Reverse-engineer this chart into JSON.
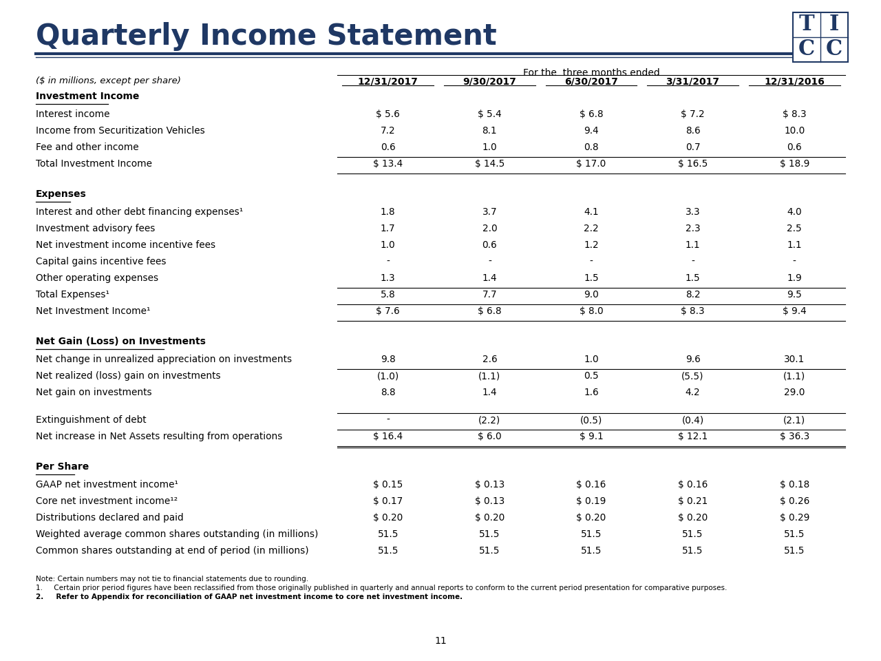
{
  "title": "Quarterly Income Statement",
  "subtitle": "For the  three months ended",
  "col_label": "($ in millions, except per share)",
  "columns": [
    "12/31/2017",
    "9/30/2017",
    "6/30/2017",
    "3/31/2017",
    "12/31/2016"
  ],
  "sections": [
    {
      "header": "Investment Income",
      "header_underline": true,
      "rows": [
        {
          "label": "Interest income",
          "values": [
            "$ 5.6",
            "$ 5.4",
            "$ 6.8",
            "$ 7.2",
            "$ 8.3"
          ],
          "top_border": false,
          "bottom_border": false
        },
        {
          "label": "Income from Securitization Vehicles",
          "values": [
            "7.2",
            "8.1",
            "9.4",
            "8.6",
            "10.0"
          ],
          "top_border": false,
          "bottom_border": false
        },
        {
          "label": "Fee and other income",
          "values": [
            "0.6",
            "1.0",
            "0.8",
            "0.7",
            "0.6"
          ],
          "top_border": false,
          "bottom_border": false
        },
        {
          "label": "Total Investment Income",
          "values": [
            "$ 13.4",
            "$ 14.5",
            "$ 17.0",
            "$ 16.5",
            "$ 18.9"
          ],
          "top_border": true,
          "bottom_border": true
        }
      ]
    },
    {
      "header": "Expenses",
      "header_underline": true,
      "rows": [
        {
          "label": "Interest and other debt financing expenses¹",
          "values": [
            "1.8",
            "3.7",
            "4.1",
            "3.3",
            "4.0"
          ],
          "top_border": false,
          "bottom_border": false
        },
        {
          "label": "Investment advisory fees",
          "values": [
            "1.7",
            "2.0",
            "2.2",
            "2.3",
            "2.5"
          ],
          "top_border": false,
          "bottom_border": false
        },
        {
          "label": "Net investment income incentive fees",
          "values": [
            "1.0",
            "0.6",
            "1.2",
            "1.1",
            "1.1"
          ],
          "top_border": false,
          "bottom_border": false
        },
        {
          "label": "Capital gains incentive fees",
          "values": [
            "-",
            "-",
            "-",
            "-",
            "-"
          ],
          "top_border": false,
          "bottom_border": false
        },
        {
          "label": "Other operating expenses",
          "values": [
            "1.3",
            "1.4",
            "1.5",
            "1.5",
            "1.9"
          ],
          "top_border": false,
          "bottom_border": false
        },
        {
          "label": "Total Expenses¹",
          "values": [
            "5.8",
            "7.7",
            "9.0",
            "8.2",
            "9.5"
          ],
          "top_border": true,
          "bottom_border": false
        },
        {
          "label": "Net Investment Income¹",
          "values": [
            "$ 7.6",
            "$ 6.8",
            "$ 8.0",
            "$ 8.3",
            "$ 9.4"
          ],
          "top_border": true,
          "bottom_border": true
        }
      ]
    },
    {
      "header": "Net Gain (Loss) on Investments",
      "header_underline": true,
      "rows": [
        {
          "label": "Net change in unrealized appreciation on investments",
          "values": [
            "9.8",
            "2.6",
            "1.0",
            "9.6",
            "30.1"
          ],
          "top_border": false,
          "bottom_border": false
        },
        {
          "label": "Net realized (loss) gain on investments",
          "values": [
            "(1.0)",
            "(1.1)",
            "0.5",
            "(5.5)",
            "(1.1)"
          ],
          "top_border": true,
          "bottom_border": false
        },
        {
          "label": "Net gain on investments",
          "values": [
            "8.8",
            "1.4",
            "1.6",
            "4.2",
            "29.0"
          ],
          "top_border": false,
          "bottom_border": false
        }
      ]
    },
    {
      "header": null,
      "rows": [
        {
          "label": "Extinguishment of debt",
          "values": [
            "-",
            "(2.2)",
            "(0.5)",
            "(0.4)",
            "(2.1)"
          ],
          "top_border": true,
          "bottom_border": false
        },
        {
          "label": "Net increase in Net Assets resulting from operations",
          "values": [
            "$ 16.4",
            "$ 6.0",
            "$ 9.1",
            "$ 12.1",
            "$ 36.3"
          ],
          "top_border": true,
          "bottom_border": true,
          "double_bottom": true
        }
      ]
    },
    {
      "header": "Per Share",
      "header_underline": true,
      "rows": [
        {
          "label": "GAAP net investment income¹",
          "values": [
            "$ 0.15",
            "$ 0.13",
            "$ 0.16",
            "$ 0.16",
            "$ 0.18"
          ],
          "top_border": false,
          "bottom_border": false
        },
        {
          "label": "Core net investment income¹²",
          "values": [
            "$ 0.17",
            "$ 0.13",
            "$ 0.19",
            "$ 0.21",
            "$ 0.26"
          ],
          "top_border": false,
          "bottom_border": false
        },
        {
          "label": "Distributions declared and paid",
          "values": [
            "$ 0.20",
            "$ 0.20",
            "$ 0.20",
            "$ 0.20",
            "$ 0.29"
          ],
          "top_border": false,
          "bottom_border": false
        },
        {
          "label": "Weighted average common shares outstanding (in millions)",
          "values": [
            "51.5",
            "51.5",
            "51.5",
            "51.5",
            "51.5"
          ],
          "top_border": false,
          "bottom_border": false
        },
        {
          "label": "Common shares outstanding at end of period (in millions)",
          "values": [
            "51.5",
            "51.5",
            "51.5",
            "51.5",
            "51.5"
          ],
          "top_border": false,
          "bottom_border": false
        }
      ]
    }
  ],
  "notes": [
    "Note: Certain numbers may not tie to financial statements due to rounding.",
    "1.     Certain prior period figures have been reclassified from those originally published in quarterly and annual reports to conform to the current period presentation for comparative purposes.",
    "2.     Refer to Appendix for reconciliation of GAAP net investment income to core net investment income."
  ],
  "page_number": "11",
  "title_color": "#1f3864",
  "line_color": "#1f3864",
  "bg_color": "#ffffff",
  "text_color": "#000000"
}
